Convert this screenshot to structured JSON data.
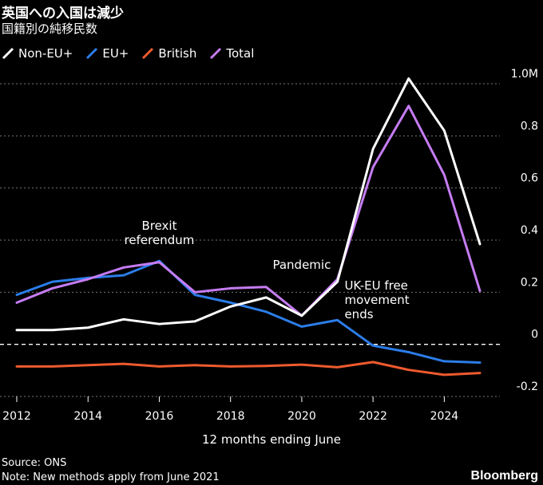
{
  "title": "英国への入国は減少",
  "subtitle": "国籍別の純移民数",
  "source": "Source: ONS",
  "note": "Note: New methods apply from June 2021",
  "brand": "Bloomberg",
  "chart_data": {
    "type": "line",
    "x": [
      2012,
      2013,
      2014,
      2015,
      2016,
      2017,
      2018,
      2019,
      2020,
      2021,
      2022,
      2023,
      2024,
      2025
    ],
    "xticks": [
      "2012",
      "2014",
      "2016",
      "2018",
      "2020",
      "2022",
      "2024"
    ],
    "xlabel": "12 months ending June",
    "ylabel": "",
    "ylim": [
      -0.2,
      1.0
    ],
    "yticks": [
      "-0.2",
      "0",
      "0.2",
      "0.4",
      "0.6",
      "0.8",
      "1.0M"
    ],
    "series": [
      {
        "name": "Non-EU+",
        "color": "#ffffff",
        "values": [
          0.055,
          0.055,
          0.064,
          0.096,
          0.078,
          0.088,
          0.145,
          0.18,
          0.11,
          0.24,
          0.75,
          1.02,
          0.82,
          0.385
        ]
      },
      {
        "name": "EU+",
        "color": "#2b7de9",
        "values": [
          0.19,
          0.24,
          0.255,
          0.265,
          0.32,
          0.19,
          0.16,
          0.125,
          0.068,
          0.093,
          -0.005,
          -0.03,
          -0.065,
          -0.07
        ]
      },
      {
        "name": "British",
        "color": "#ee5a2e",
        "values": [
          -0.085,
          -0.085,
          -0.08,
          -0.075,
          -0.085,
          -0.08,
          -0.085,
          -0.083,
          -0.078,
          -0.088,
          -0.068,
          -0.098,
          -0.117,
          -0.11
        ]
      },
      {
        "name": "Total",
        "color": "#c57cf2",
        "values": [
          0.16,
          0.215,
          0.25,
          0.295,
          0.315,
          0.2,
          0.215,
          0.22,
          0.11,
          0.25,
          0.68,
          0.915,
          0.65,
          0.205
        ]
      }
    ],
    "annotations": [
      {
        "text": "Brexit\nreferendum",
        "x": 2016,
        "y": 0.44
      },
      {
        "text": "Pandemic",
        "x": 2020,
        "y": 0.29
      },
      {
        "text": "UK-EU free\nmovement\nends",
        "x": 2021.2,
        "y": 0.21
      }
    ]
  }
}
